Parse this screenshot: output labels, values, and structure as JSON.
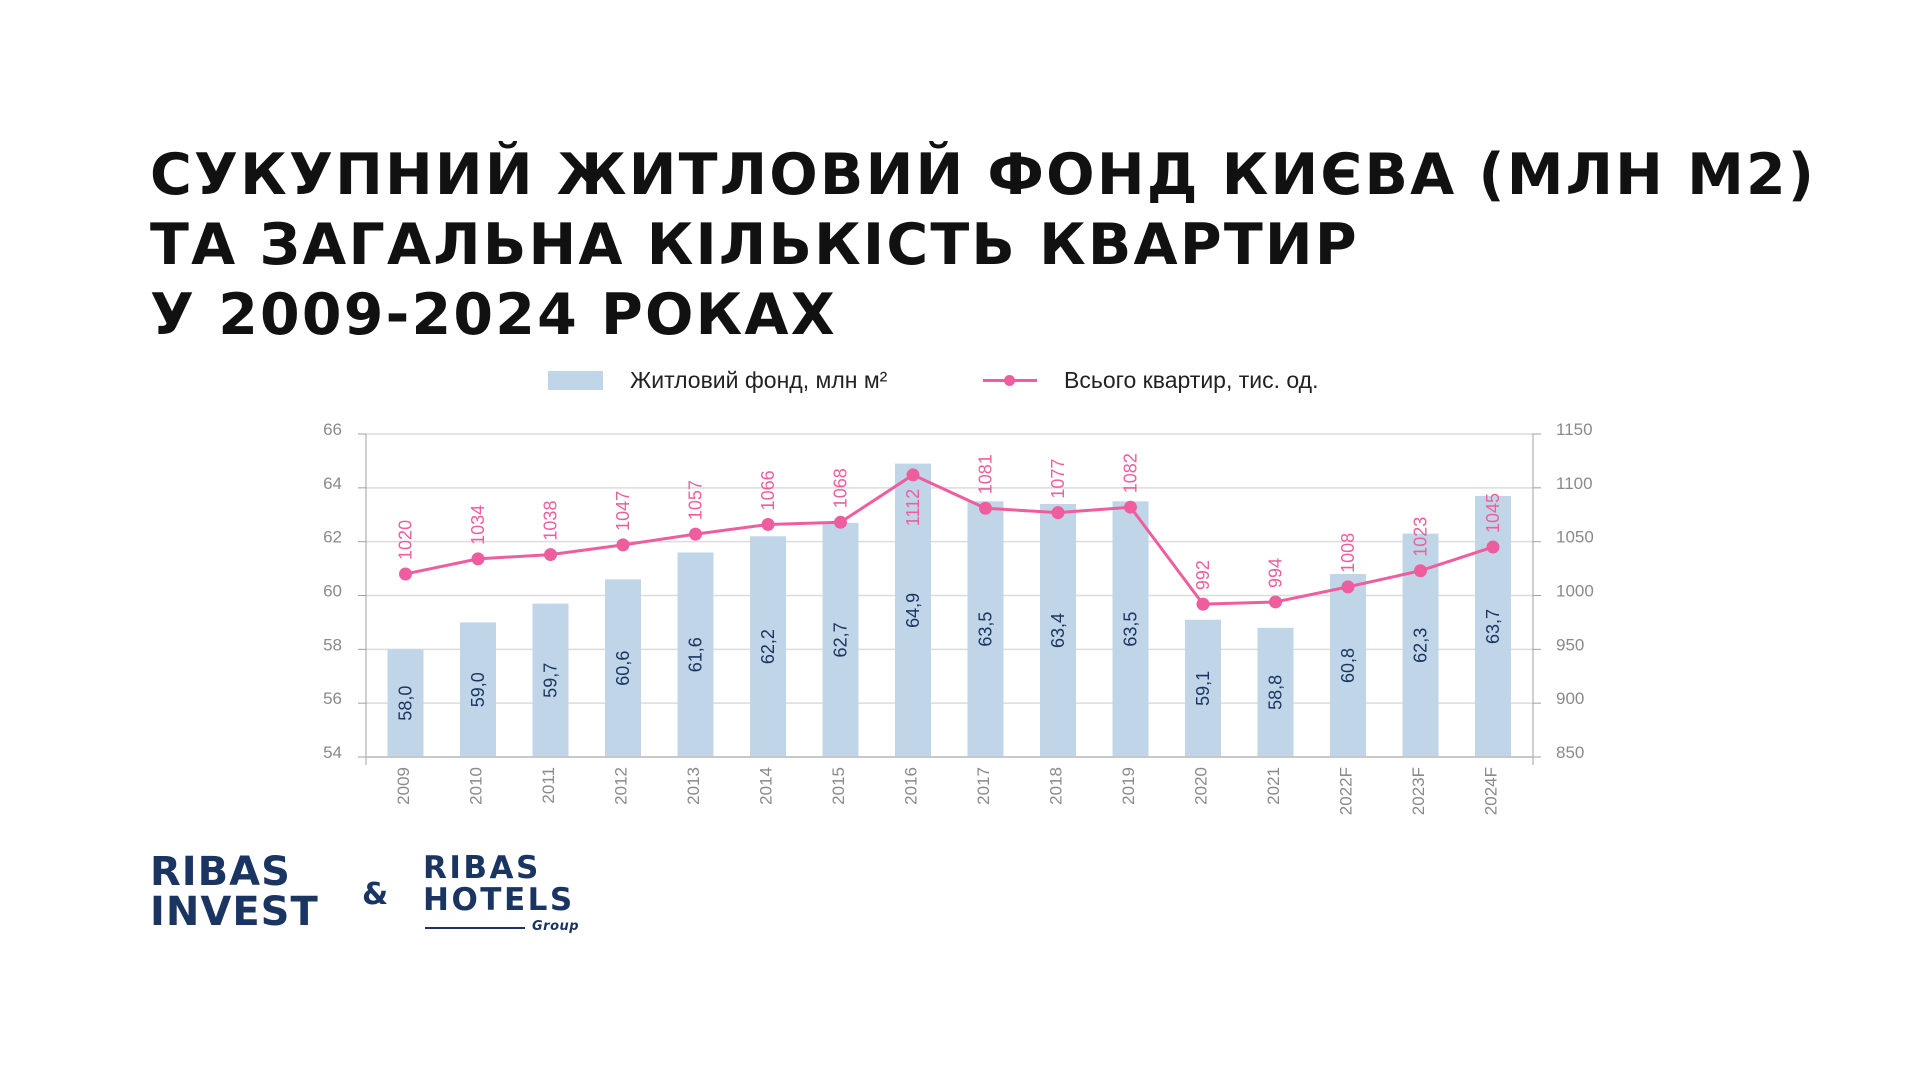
{
  "title": {
    "lines": [
      "СУКУПНИЙ ЖИТЛОВИЙ ФОНД КИЄВА (МЛН М2)",
      "ТА ЗАГАЛЬНА КІЛЬКІСТЬ КВАРТИР",
      "У 2009-2024 РОКАХ"
    ]
  },
  "legend": {
    "bar_label": "Житловий фонд, млн м²",
    "line_label": "Всього квартир, тис. од."
  },
  "colors": {
    "bar": "#C0D6E8",
    "line": "#EE5E9E",
    "bar_value_text": "#1B3563",
    "axis_text": "#8A8A8A",
    "grid": "#DCDCDC",
    "axis": "#A0A0A0"
  },
  "chart_data": {
    "type": "bar",
    "title": "Сукупний житловий фонд Києва (млн м2) та загальна кількість квартир у 2009-2024 роках",
    "xlabel": "",
    "ylabel": "Житловий фонд, млн м²",
    "y2label": "Всього квартир, тис. од.",
    "categories": [
      "2009",
      "2010",
      "2011",
      "2012",
      "2013",
      "2014",
      "2015",
      "2016",
      "2017",
      "2018",
      "2019",
      "2020",
      "2021",
      "2022F",
      "2023F",
      "2024F"
    ],
    "series": [
      {
        "name": "Житловий фонд, млн м²",
        "type": "bar",
        "axis": "left",
        "values": [
          58.0,
          59.0,
          59.7,
          60.6,
          61.6,
          62.2,
          62.7,
          64.9,
          63.5,
          63.4,
          63.5,
          59.1,
          58.8,
          60.8,
          62.3,
          63.7
        ],
        "labels": [
          "58,0",
          "59,0",
          "59,7",
          "60,6",
          "61,6",
          "62,2",
          "62,7",
          "64,9",
          "63,5",
          "63,4",
          "63,5",
          "59,1",
          "58,8",
          "60,8",
          "62,3",
          "63,7"
        ]
      },
      {
        "name": "Всього квартир, тис. од.",
        "type": "line",
        "axis": "right",
        "values": [
          1020,
          1034,
          1038,
          1047,
          1057,
          1066,
          1068,
          1112,
          1081,
          1077,
          1082,
          992,
          994,
          1008,
          1023,
          1045
        ],
        "labels": [
          "1020",
          "1034",
          "1038",
          "1047",
          "1057",
          "1066",
          "1068",
          "1112",
          "1081",
          "1077",
          "1082",
          "992",
          "994",
          "1008",
          "1023",
          "1045"
        ]
      }
    ],
    "ylim": [
      54,
      66
    ],
    "yticks": [
      "54",
      "56",
      "58",
      "60",
      "62",
      "64",
      "66"
    ],
    "y2lim": [
      850,
      1150
    ],
    "y2ticks": [
      "850",
      "900",
      "950",
      "1000",
      "1050",
      "1100",
      "1150"
    ],
    "grid": true,
    "legend_position": "top"
  },
  "logos": {
    "left": [
      "RIBAS",
      "INVEST"
    ],
    "separator": "&",
    "right": [
      "RIBAS",
      "HOTELS"
    ],
    "right_sub": "Group"
  }
}
